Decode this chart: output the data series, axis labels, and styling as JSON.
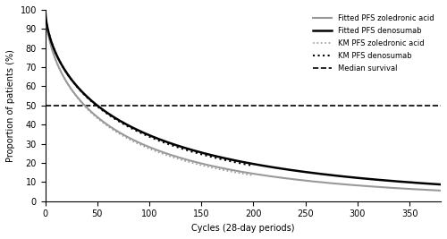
{
  "title": "",
  "xlabel": "Cycles (28-day periods)",
  "ylabel": "Proportion of patients (%)",
  "xlim": [
    0,
    380
  ],
  "ylim": [
    0,
    100
  ],
  "xticks": [
    0,
    50,
    100,
    150,
    200,
    250,
    300,
    350
  ],
  "yticks": [
    0,
    10,
    20,
    30,
    40,
    50,
    60,
    70,
    80,
    90,
    100
  ],
  "median_survival_y": 50,
  "fitted_zoledronic_color": "#999999",
  "fitted_denosumab_color": "#000000",
  "km_zoledronic_color": "#999999",
  "km_denosumab_color": "#000000",
  "median_color": "#000000",
  "legend_labels": [
    "Fitted PFS zoledronic acid",
    "Fitted PFS denosumab",
    "KM PFS zoledronic acid",
    "KM PFS denosumab",
    "Median survival"
  ],
  "background_color": "#ffffff",
  "shape_zol": 0.62,
  "median_zol": 38,
  "shape_deno": 0.62,
  "median_deno": 50
}
